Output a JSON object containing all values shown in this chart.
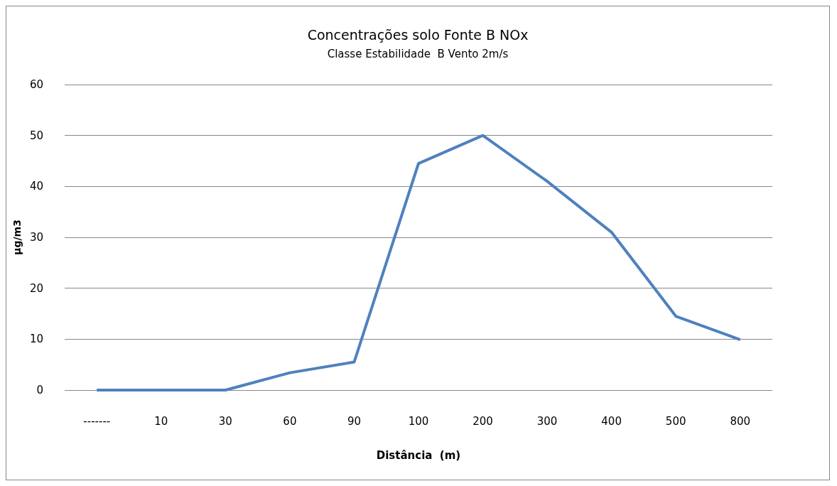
{
  "chart_data": {
    "type": "line",
    "title": "Concentrações solo Fonte B NOx",
    "subtitle": "Classe Estabilidade  B Vento 2m/s",
    "xlabel": "Distância  (m)",
    "ylabel": "µg/m3",
    "categories": [
      "-------",
      "10",
      "30",
      "60",
      "90",
      "100",
      "200",
      "300",
      "400",
      "500",
      "800"
    ],
    "series": [
      {
        "color": "#4f81bd",
        "values": [
          0,
          0,
          0,
          3.4,
          5.5,
          44.5,
          50,
          41,
          31,
          14.5,
          9.9
        ]
      }
    ],
    "ylim": [
      0,
      60
    ],
    "yticks": [
      0,
      10,
      20,
      30,
      40,
      50,
      60
    ],
    "grid": "y",
    "marker": "none",
    "line_style": "solid"
  }
}
